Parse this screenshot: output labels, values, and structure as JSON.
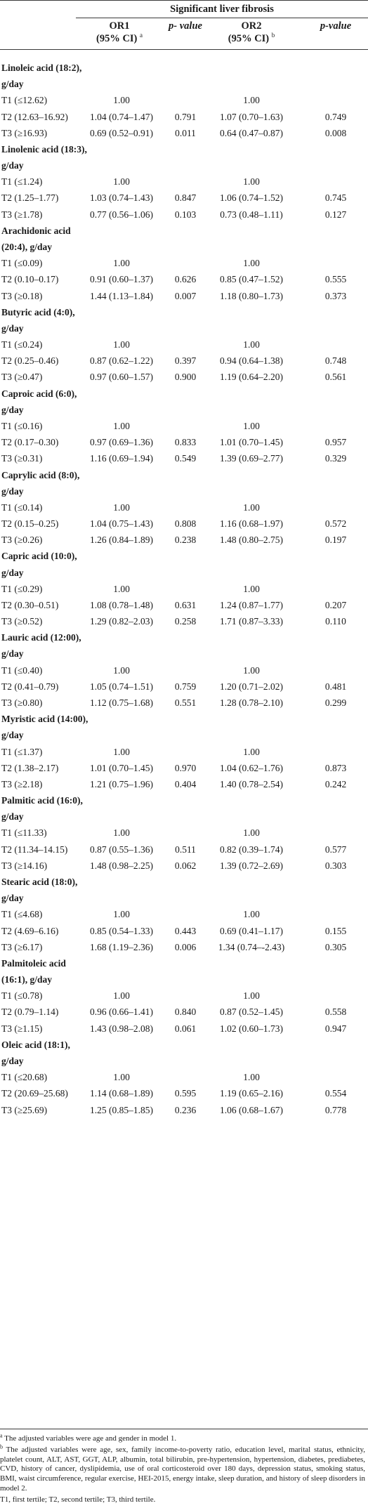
{
  "header": {
    "group": "Significant liver fibrosis",
    "col_or1_line1": "OR1",
    "col_or1_line2": "(95% CI)",
    "col_or1_sup": "a",
    "col_p1": "p- value",
    "col_or2_line1": "OR2",
    "col_or2_line2": "(95% CI)",
    "col_or2_sup": "b",
    "col_p2": "p-value"
  },
  "sections": [
    {
      "title": [
        "Linoleic acid (18:2),",
        "g/day"
      ],
      "rows": [
        {
          "label": "T1 (≤12.62)",
          "or1": "1.00",
          "p1": "",
          "or2": "1.00",
          "p2": ""
        },
        {
          "label": "T2 (12.63–16.92)",
          "or1": "1.04 (0.74–1.47)",
          "p1": "0.791",
          "or2": "1.07 (0.70–1.63)",
          "p2": "0.749"
        },
        {
          "label": "T3 (≥16.93)",
          "or1": "0.69 (0.52–0.91)",
          "p1": "0.011",
          "or2": "0.64 (0.47–0.87)",
          "p2": "0.008"
        }
      ]
    },
    {
      "title": [
        "Linolenic acid (18:3),",
        "g/day"
      ],
      "rows": [
        {
          "label": "T1 (≤1.24)",
          "or1": "1.00",
          "p1": "",
          "or2": "1.00",
          "p2": ""
        },
        {
          "label": "T2 (1.25–1.77)",
          "or1": "1.03 (0.74–1.43)",
          "p1": "0.847",
          "or2": "1.06 (0.74–1.52)",
          "p2": "0.745"
        },
        {
          "label": "T3 (≥1.78)",
          "or1": "0.77 (0.56–1.06)",
          "p1": "0.103",
          "or2": "0.73 (0.48–1.11)",
          "p2": "0.127"
        }
      ]
    },
    {
      "title": [
        "Arachidonic acid",
        "(20:4), g/day"
      ],
      "rows": [
        {
          "label": "T1 (≤0.09)",
          "or1": "1.00",
          "p1": "",
          "or2": "1.00",
          "p2": ""
        },
        {
          "label": "T2 (0.10–0.17)",
          "or1": "0.91 (0.60–1.37)",
          "p1": "0.626",
          "or2": "0.85 (0.47–1.52)",
          "p2": "0.555"
        },
        {
          "label": "T3 (≥0.18)",
          "or1": "1.44 (1.13–1.84)",
          "p1": "0.007",
          "or2": "1.18 (0.80–1.73)",
          "p2": "0.373"
        }
      ]
    },
    {
      "title": [
        "Butyric acid (4:0),",
        "g/day"
      ],
      "rows": [
        {
          "label": "T1 (≤0.24)",
          "or1": "1.00",
          "p1": "",
          "or2": "1.00",
          "p2": ""
        },
        {
          "label": "T2 (0.25–0.46)",
          "or1": "0.87 (0.62–1.22)",
          "p1": "0.397",
          "or2": "0.94 (0.64–1.38)",
          "p2": "0.748"
        },
        {
          "label": "T3 (≥0.47)",
          "or1": "0.97 (0.60–1.57)",
          "p1": "0.900",
          "or2": "1.19 (0.64–2.20)",
          "p2": "0.561"
        }
      ]
    },
    {
      "title": [
        "Caproic acid (6:0),",
        "g/day"
      ],
      "rows": [
        {
          "label": "T1 (≤0.16)",
          "or1": "1.00",
          "p1": "",
          "or2": "1.00",
          "p2": ""
        },
        {
          "label": "T2 (0.17–0.30)",
          "or1": "0.97 (0.69–1.36)",
          "p1": "0.833",
          "or2": "1.01 (0.70–1.45)",
          "p2": "0.957"
        },
        {
          "label": "T3 (≥0.31)",
          "or1": "1.16 (0.69–1.94)",
          "p1": "0.549",
          "or2": "1.39 (0.69–2.77)",
          "p2": "0.329"
        }
      ]
    },
    {
      "title": [
        "Caprylic acid (8:0),",
        "g/day"
      ],
      "rows": [
        {
          "label": "T1 (≤0.14)",
          "or1": "1.00",
          "p1": "",
          "or2": "1.00",
          "p2": ""
        },
        {
          "label": "T2 (0.15–0.25)",
          "or1": "1.04 (0.75–1.43)",
          "p1": "0.808",
          "or2": "1.16 (0.68–1.97)",
          "p2": "0.572"
        },
        {
          "label": "T3 (≥0.26)",
          "or1": "1.26 (0.84–1.89)",
          "p1": "0.238",
          "or2": "1.48 (0.80–2.75)",
          "p2": "0.197"
        }
      ]
    },
    {
      "title": [
        "Capric acid (10:0),",
        "g/day"
      ],
      "rows": [
        {
          "label": "T1 (≤0.29)",
          "or1": "1.00",
          "p1": "",
          "or2": "1.00",
          "p2": ""
        },
        {
          "label": "T2 (0.30–0.51)",
          "or1": "1.08 (0.78–1.48)",
          "p1": "0.631",
          "or2": "1.24 (0.87–1.77)",
          "p2": "0.207"
        },
        {
          "label": "T3 (≥0.52)",
          "or1": "1.29 (0.82–2.03)",
          "p1": "0.258",
          "or2": "1.71 (0.87–3.33)",
          "p2": "0.110"
        }
      ]
    },
    {
      "title": [
        "Lauric acid (12:00),",
        "g/day"
      ],
      "rows": [
        {
          "label": "T1 (≤0.40)",
          "or1": "1.00",
          "p1": "",
          "or2": "1.00",
          "p2": ""
        },
        {
          "label": "T2 (0.41–0.79)",
          "or1": "1.05 (0.74–1.51)",
          "p1": "0.759",
          "or2": "1.20 (0.71–2.02)",
          "p2": "0.481"
        },
        {
          "label": "T3 (≥0.80)",
          "or1": "1.12 (0.75–1.68)",
          "p1": "0.551",
          "or2": "1.28 (0.78–2.10)",
          "p2": "0.299"
        }
      ]
    },
    {
      "title": [
        "Myristic acid (14:00),",
        "g/day"
      ],
      "rows": [
        {
          "label": "T1 (≤1.37)",
          "or1": "1.00",
          "p1": "",
          "or2": "1.00",
          "p2": ""
        },
        {
          "label": "T2 (1.38–2.17)",
          "or1": "1.01 (0.70–1.45)",
          "p1": "0.970",
          "or2": "1.04 (0.62–1.76)",
          "p2": "0.873"
        },
        {
          "label": "T3 (≥2.18)",
          "or1": "1.21 (0.75–1.96)",
          "p1": "0.404",
          "or2": "1.40 (0.78–2.54)",
          "p2": "0.242"
        }
      ]
    },
    {
      "title": [
        "Palmitic acid (16:0),",
        "g/day"
      ],
      "rows": [
        {
          "label": "T1 (≤11.33)",
          "or1": "1.00",
          "p1": "",
          "or2": "1.00",
          "p2": ""
        },
        {
          "label": "T2 (11.34–14.15)",
          "or1": "0.87 (0.55–1.36)",
          "p1": "0.511",
          "or2": "0.82 (0.39–1.74)",
          "p2": "0.577"
        },
        {
          "label": "T3 (≥14.16)",
          "or1": "1.48 (0.98–2.25)",
          "p1": "0.062",
          "or2": "1.39 (0.72–2.69)",
          "p2": "0.303"
        }
      ]
    },
    {
      "title": [
        "Stearic acid (18:0),",
        "g/day"
      ],
      "rows": [
        {
          "label": "T1 (≤4.68)",
          "or1": "1.00",
          "p1": "",
          "or2": "1.00",
          "p2": ""
        },
        {
          "label": "T2 (4.69–6.16)",
          "or1": "0.85 (0.54–1.33)",
          "p1": "0.443",
          "or2": "0.69 (0.41–1.17)",
          "p2": "0.155"
        },
        {
          "label": "T3 (≥6.17)",
          "or1": "1.68 (1.19–2.36)",
          "p1": "0.006",
          "or2": "1.34 (0.74–-2.43)",
          "p2": "0.305"
        }
      ]
    },
    {
      "title": [
        "Palmitoleic acid",
        "(16:1), g/day"
      ],
      "rows": [
        {
          "label": "T1 (≤0.78)",
          "or1": "1.00",
          "p1": "",
          "or2": "1.00",
          "p2": ""
        },
        {
          "label": "T2 (0.79–1.14)",
          "or1": "0.96 (0.66–1.41)",
          "p1": "0.840",
          "or2": "0.87 (0.52–1.45)",
          "p2": "0.558"
        },
        {
          "label": "T3 (≥1.15)",
          "or1": "1.43 (0.98–2.08)",
          "p1": "0.061",
          "or2": "1.02 (0.60–1.73)",
          "p2": "0.947"
        }
      ]
    },
    {
      "title": [
        "Oleic acid (18:1),",
        "g/day"
      ],
      "rows": [
        {
          "label": "T1 (≤20.68)",
          "or1": "1.00",
          "p1": "",
          "or2": "1.00",
          "p2": ""
        },
        {
          "label": "T2 (20.69–25.68)",
          "or1": "1.14 (0.68–1.89)",
          "p1": "0.595",
          "or2": "1.19 (0.65–2.16)",
          "p2": "0.554"
        },
        {
          "label": "T3 (≥25.69)",
          "or1": "1.25 (0.85–1.85)",
          "p1": "0.236",
          "or2": "1.06 (0.68–1.67)",
          "p2": "0.778"
        }
      ]
    }
  ],
  "footnotes": [
    {
      "mark": "a",
      "text": "The adjusted variables were age and gender in model 1."
    },
    {
      "mark": "b",
      "text": "The adjusted variables were age, sex, family income-to-poverty ratio, education level, marital status, ethnicity, platelet count, ALT, AST, GGT, ALP, albumin, total bilirubin, pre-hypertension, hypertension, diabetes, prediabetes, CVD, history of cancer, dyslipidemia, use of oral corticosteroid over 180 days, depression status, smoking status, BMI, waist circumference, regular exercise, HEI-2015, energy intake, sleep duration, and history of sleep disorders in model 2."
    },
    {
      "mark": "",
      "text": "T1, first tertile; T2, second tertile; T3, third tertile."
    }
  ]
}
